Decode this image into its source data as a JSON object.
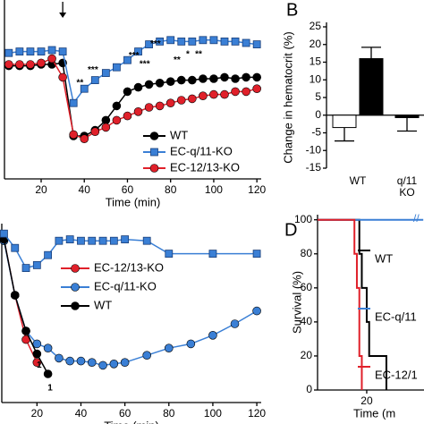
{
  "chart_data": [
    {
      "type": "line",
      "xlabel": "Time (min)",
      "xlim": [
        3,
        122
      ],
      "ylim": [
        0,
        125
      ],
      "xticks": [
        20,
        40,
        60,
        80,
        100,
        120
      ],
      "arrow_at": 30,
      "series": [
        {
          "name": "WT",
          "color": "#000000",
          "marker": "circle",
          "x": [
            5,
            10,
            15,
            20,
            25,
            30,
            35,
            40,
            45,
            50,
            55,
            60,
            65,
            70,
            75,
            80,
            85,
            90,
            95,
            100,
            105,
            110,
            115,
            120
          ],
          "values": [
            79,
            79,
            79,
            80,
            80,
            81,
            30,
            30,
            34,
            41,
            51,
            61,
            64,
            66,
            67,
            68,
            69,
            69,
            70,
            70,
            71,
            70,
            71,
            71
          ]
        },
        {
          "name": "EC-q/11-KO",
          "color": "#3a7fd5",
          "marker": "square",
          "x": [
            5,
            10,
            15,
            20,
            25,
            30,
            35,
            40,
            45,
            50,
            55,
            60,
            65,
            70,
            75,
            80,
            85,
            90,
            95,
            100,
            105,
            110,
            115,
            120
          ],
          "values": [
            88,
            89,
            89,
            89,
            90,
            89,
            53,
            63,
            69,
            74,
            78,
            83,
            89,
            94,
            96,
            97,
            96,
            96,
            97,
            97,
            96,
            96,
            95,
            94
          ]
        },
        {
          "name": "EC-12/13-KO",
          "color": "#e0202a",
          "marker": "circle",
          "x": [
            5,
            10,
            15,
            20,
            25,
            30,
            35,
            40,
            45,
            50,
            55,
            60,
            65,
            70,
            75,
            80,
            85,
            90,
            95,
            100,
            105,
            110,
            115,
            120
          ],
          "values": [
            80,
            80,
            80,
            81,
            84,
            71,
            31,
            28,
            33,
            36,
            41,
            44,
            47,
            50,
            51,
            53,
            55,
            56,
            58,
            59,
            59,
            61,
            61,
            63
          ]
        }
      ],
      "annotations": [
        {
          "text": "**",
          "x": 38,
          "y": 67
        },
        {
          "text": "***",
          "x": 44,
          "y": 76
        },
        {
          "text": "***",
          "x": 63,
          "y": 86
        },
        {
          "text": "***",
          "x": 68,
          "y": 80
        },
        {
          "text": "***",
          "x": 73,
          "y": 94
        },
        {
          "text": "**",
          "x": 83,
          "y": 83
        },
        {
          "text": "*",
          "x": 88,
          "y": 87
        },
        {
          "text": "**",
          "x": 93,
          "y": 87
        }
      ]
    },
    {
      "type": "bar",
      "panel_label": "B",
      "ylabel": "Change in hematocrit (%)",
      "categories": [
        "WT",
        "q/11\nKO"
      ],
      "ylim": [
        -15,
        25
      ],
      "yticks": [
        -15,
        -10,
        -5,
        0,
        5,
        10,
        15,
        20,
        25
      ],
      "series": [
        {
          "color": "#ffffff",
          "values": [
            -3.5,
            null
          ],
          "errors": [
            3.8,
            null
          ]
        },
        {
          "color": "#000000",
          "values": [
            16,
            -0.7
          ],
          "errors": [
            3.2,
            3.8
          ]
        }
      ]
    },
    {
      "type": "line",
      "xlabel": "Time (min)",
      "xlim": [
        4,
        122
      ],
      "ylim": [
        0,
        125
      ],
      "xticks": [
        20,
        40,
        60,
        80,
        100,
        120
      ],
      "series": [
        {
          "name": "EC-12/13-KO",
          "color": "#e0202a",
          "marker": "circle",
          "x": [
            5,
            10,
            15,
            20
          ],
          "values": [
            114,
            75,
            44,
            28
          ]
        },
        {
          "name": "EC-q/11-KO",
          "color": "#3a7fd5",
          "marker": "circle",
          "x": [
            5,
            10,
            15,
            20,
            25,
            30,
            35,
            40,
            45,
            50,
            55,
            60,
            70,
            80,
            90,
            100,
            110,
            120
          ],
          "values": [
            113,
            75,
            50,
            41,
            38,
            31,
            29,
            29,
            28,
            26,
            27,
            28,
            33,
            38,
            41,
            47,
            55,
            64
          ]
        },
        {
          "name": "WT",
          "color": "#000000",
          "marker": "circle",
          "x": [
            5,
            10,
            15,
            20,
            25
          ],
          "values": [
            114,
            75,
            50,
            34,
            20
          ]
        },
        {
          "color": "#3a7fd5",
          "marker": "square",
          "x": [
            5,
            10,
            15,
            20,
            25,
            30,
            35,
            40,
            45,
            50,
            55,
            60,
            70,
            80,
            100,
            120
          ],
          "values": [
            118,
            108,
            94,
            96,
            103,
            113,
            114,
            113,
            113,
            113,
            113,
            114,
            113,
            104,
            104,
            104
          ]
        }
      ],
      "annotations": [
        {
          "text": "1",
          "x": 21,
          "y": 26
        },
        {
          "text": "1",
          "x": 26,
          "y": 10
        }
      ]
    },
    {
      "type": "line",
      "step": true,
      "panel_label": "D",
      "xlabel": "Time (m",
      "ylabel": "Survival (%)",
      "xlim": [
        0,
        43.3
      ],
      "ylim": [
        0,
        103
      ],
      "xticks": [
        20
      ],
      "yticks": [
        0,
        20,
        40,
        60,
        80,
        100
      ],
      "series": [
        {
          "name": "WT",
          "color": "#000000",
          "x": [
            0,
            17,
            18,
            20,
            21,
            28
          ],
          "values": [
            100,
            80,
            60,
            40,
            20,
            0
          ]
        },
        {
          "name": "EC-q/11",
          "color": "#3a7fd5",
          "x": [
            0,
            43
          ],
          "values": [
            100,
            100
          ]
        },
        {
          "name": "EC-12/1",
          "color": "#e0202a",
          "x": [
            0,
            15,
            16,
            17,
            18
          ],
          "values": [
            100,
            80,
            60,
            20,
            0
          ]
        }
      ]
    }
  ]
}
